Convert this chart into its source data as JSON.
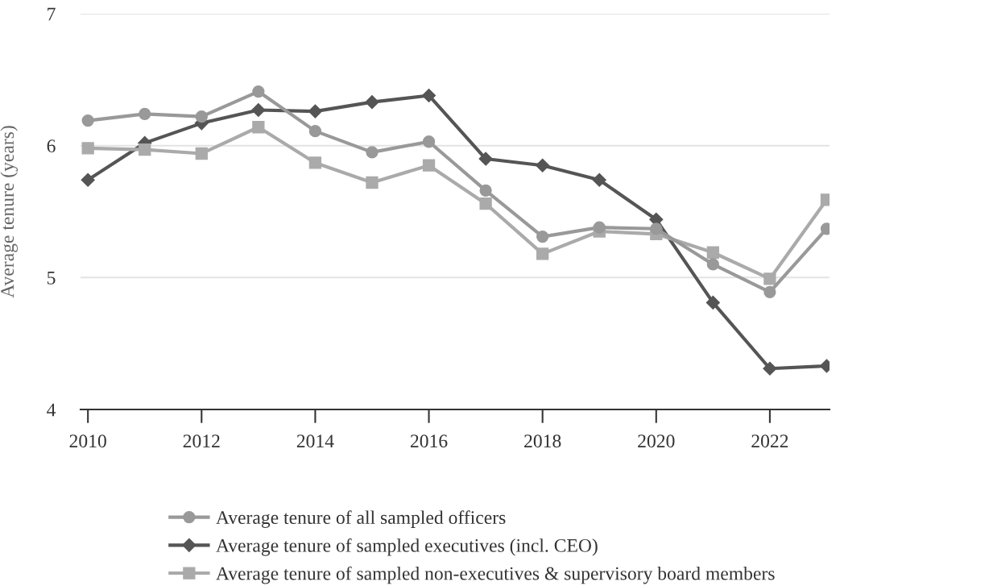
{
  "chart_data": {
    "type": "line",
    "ylabel": "Average tenure (years)",
    "x": [
      2010,
      2011,
      2012,
      2013,
      2014,
      2015,
      2016,
      2017,
      2018,
      2019,
      2020,
      2021,
      2022,
      2023
    ],
    "series": [
      {
        "name": "Average tenure of all sampled officers",
        "color": "#999999",
        "marker": "circle",
        "values": [
          6.19,
          6.24,
          6.22,
          6.41,
          6.11,
          5.95,
          6.03,
          5.66,
          5.31,
          5.38,
          5.37,
          5.1,
          4.89,
          5.37
        ]
      },
      {
        "name": "Average tenure of sampled executives (incl. CEO)",
        "color": "#555555",
        "marker": "diamond",
        "values": [
          5.74,
          6.02,
          6.17,
          6.27,
          6.26,
          6.33,
          6.38,
          5.9,
          5.85,
          5.74,
          5.44,
          4.81,
          4.31,
          4.33
        ]
      },
      {
        "name": "Average tenure of sampled non-executives & supervisory board members",
        "color": "#aaaaaa",
        "marker": "square",
        "values": [
          5.98,
          5.97,
          5.94,
          6.14,
          5.87,
          5.72,
          5.85,
          5.56,
          5.18,
          5.35,
          5.33,
          5.19,
          4.99,
          5.59
        ]
      }
    ],
    "xlim": [
      2009.87,
      2023.05
    ],
    "xticks": [
      2010,
      2012,
      2014,
      2016,
      2018,
      2020,
      2022
    ],
    "ylim": [
      4,
      7
    ],
    "yticks": [
      4,
      5,
      6,
      7
    ],
    "grid": "y",
    "legend": "bottom",
    "line_style": "solid"
  }
}
